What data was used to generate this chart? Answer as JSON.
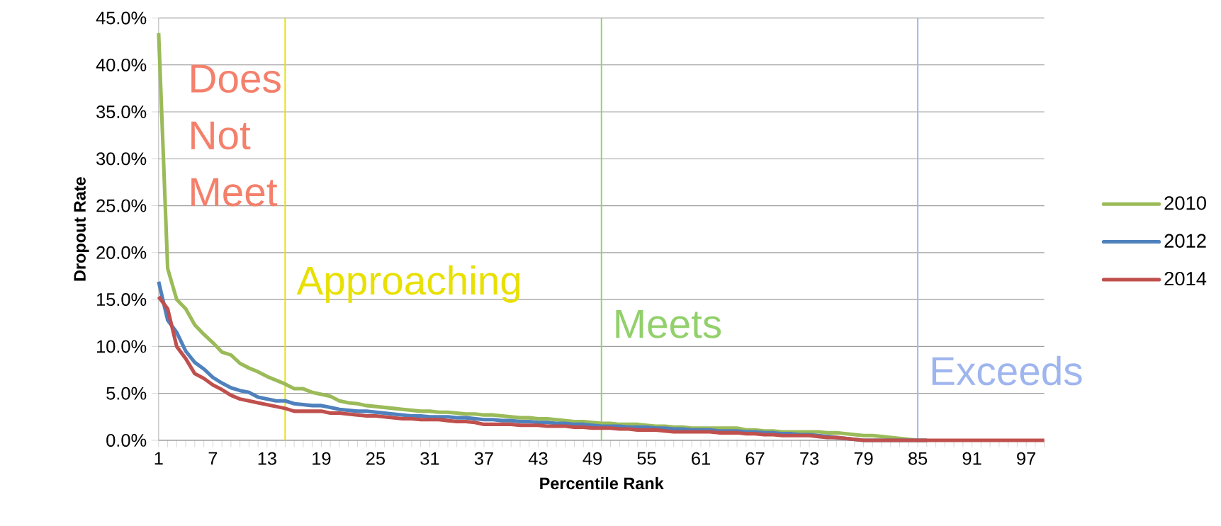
{
  "chart_data": {
    "type": "line",
    "xlabel": "Percentile Rank",
    "ylabel": "Dropout Rate",
    "x": [
      1,
      2,
      3,
      4,
      5,
      6,
      7,
      8,
      9,
      10,
      11,
      12,
      13,
      14,
      15,
      16,
      17,
      18,
      19,
      20,
      21,
      22,
      23,
      24,
      25,
      26,
      27,
      28,
      29,
      30,
      31,
      32,
      33,
      34,
      35,
      36,
      37,
      38,
      39,
      40,
      41,
      42,
      43,
      44,
      45,
      46,
      47,
      48,
      49,
      50,
      51,
      52,
      53,
      54,
      55,
      56,
      57,
      58,
      59,
      60,
      61,
      62,
      63,
      64,
      65,
      66,
      67,
      68,
      69,
      70,
      71,
      72,
      73,
      74,
      75,
      76,
      77,
      78,
      79,
      80,
      81,
      82,
      83,
      84,
      85,
      86,
      87,
      88,
      89,
      90,
      91,
      92,
      93,
      94,
      95,
      96,
      97,
      98,
      99
    ],
    "series": [
      {
        "name": "2010",
        "color": "#9bbb59",
        "values": [
          43.4,
          18.3,
          15.0,
          14.0,
          12.3,
          11.3,
          10.4,
          9.4,
          9.1,
          8.2,
          7.7,
          7.3,
          6.8,
          6.4,
          6.0,
          5.5,
          5.5,
          5.1,
          4.9,
          4.7,
          4.2,
          4.0,
          3.9,
          3.7,
          3.6,
          3.5,
          3.4,
          3.3,
          3.2,
          3.1,
          3.1,
          3.0,
          3.0,
          2.9,
          2.8,
          2.8,
          2.7,
          2.7,
          2.6,
          2.5,
          2.4,
          2.4,
          2.3,
          2.3,
          2.2,
          2.1,
          2.0,
          2.0,
          1.9,
          1.8,
          1.8,
          1.7,
          1.7,
          1.7,
          1.6,
          1.5,
          1.5,
          1.4,
          1.4,
          1.3,
          1.3,
          1.3,
          1.3,
          1.3,
          1.3,
          1.1,
          1.1,
          1.0,
          1.0,
          0.9,
          0.9,
          0.9,
          0.9,
          0.9,
          0.8,
          0.8,
          0.7,
          0.6,
          0.5,
          0.5,
          0.4,
          0.3,
          0.2,
          0.1,
          0.0,
          0,
          null,
          null,
          null,
          null,
          null,
          null,
          null,
          null,
          null,
          null,
          null,
          null,
          null
        ]
      },
      {
        "name": "2012",
        "color": "#4f81bd",
        "values": [
          16.9,
          12.8,
          11.5,
          9.5,
          8.3,
          7.6,
          6.7,
          6.1,
          5.6,
          5.3,
          5.1,
          4.6,
          4.4,
          4.2,
          4.2,
          3.9,
          3.8,
          3.7,
          3.7,
          3.5,
          3.3,
          3.2,
          3.1,
          3.1,
          3.0,
          2.9,
          2.8,
          2.7,
          2.6,
          2.6,
          2.5,
          2.5,
          2.5,
          2.4,
          2.4,
          2.3,
          2.2,
          2.2,
          2.1,
          2.1,
          2.0,
          2.0,
          1.9,
          1.9,
          1.8,
          1.8,
          1.7,
          1.7,
          1.6,
          1.5,
          1.5,
          1.5,
          1.4,
          1.4,
          1.4,
          1.3,
          1.3,
          1.2,
          1.2,
          1.1,
          1.1,
          1.1,
          1.0,
          1.0,
          1.0,
          0.9,
          0.9,
          0.8,
          0.8,
          0.7,
          0.7,
          0.6,
          0.6,
          0.5,
          0.4,
          0.3,
          0.2,
          0.1,
          0.0,
          0.0,
          0.0,
          0.0,
          0.0,
          0.0,
          0.0,
          0,
          null,
          null,
          null,
          null,
          null,
          null,
          null,
          null,
          null,
          null,
          null,
          null,
          null
        ]
      },
      {
        "name": "2014",
        "color": "#c0504d",
        "values": [
          15.3,
          14.0,
          10.0,
          8.7,
          7.1,
          6.6,
          5.9,
          5.4,
          4.8,
          4.4,
          4.2,
          4.0,
          3.8,
          3.6,
          3.4,
          3.1,
          3.1,
          3.1,
          3.1,
          2.9,
          2.9,
          2.8,
          2.7,
          2.6,
          2.6,
          2.5,
          2.4,
          2.3,
          2.3,
          2.2,
          2.2,
          2.2,
          2.1,
          2.0,
          2.0,
          1.9,
          1.7,
          1.7,
          1.7,
          1.7,
          1.6,
          1.6,
          1.6,
          1.5,
          1.5,
          1.5,
          1.4,
          1.4,
          1.3,
          1.3,
          1.3,
          1.2,
          1.2,
          1.1,
          1.1,
          1.1,
          1.0,
          0.9,
          0.9,
          0.9,
          0.9,
          0.9,
          0.8,
          0.8,
          0.8,
          0.7,
          0.7,
          0.6,
          0.6,
          0.5,
          0.5,
          0.5,
          0.5,
          0.4,
          0.3,
          0.3,
          0.2,
          0.1,
          0.0,
          0.0,
          0.0,
          0.0,
          0.0,
          0.0,
          0.0,
          0,
          0,
          0,
          0,
          0,
          0,
          0,
          0,
          0,
          0,
          0,
          0,
          0,
          0
        ]
      }
    ],
    "xlim": [
      1,
      99
    ],
    "xticks": [
      1,
      {
        "value": 2,
        "label": null
      },
      {
        "value": 3,
        "label": null
      },
      {
        "value": 4,
        "label": null
      },
      {
        "value": 5,
        "label": null
      },
      {
        "value": 6,
        "label": null
      },
      7,
      {
        "value": 8,
        "label": null
      },
      {
        "value": 9,
        "label": null
      },
      {
        "value": 10,
        "label": null
      },
      {
        "value": 11,
        "label": null
      },
      {
        "value": 12,
        "label": null
      },
      13,
      {
        "value": 14,
        "label": null
      },
      {
        "value": 15,
        "label": null
      },
      {
        "value": 16,
        "label": null
      },
      {
        "value": 17,
        "label": null
      },
      {
        "value": 18,
        "label": null
      },
      19,
      {
        "value": 20,
        "label": null
      },
      {
        "value": 21,
        "label": null
      },
      {
        "value": 22,
        "label": null
      },
      {
        "value": 23,
        "label": null
      },
      {
        "value": 24,
        "label": null
      },
      25,
      {
        "value": 26,
        "label": null
      },
      {
        "value": 27,
        "label": null
      },
      {
        "value": 28,
        "label": null
      },
      {
        "value": 29,
        "label": null
      },
      {
        "value": 30,
        "label": null
      },
      31,
      {
        "value": 32,
        "label": null
      },
      {
        "value": 33,
        "label": null
      },
      {
        "value": 34,
        "label": null
      },
      {
        "value": 35,
        "label": null
      },
      {
        "value": 36,
        "label": null
      },
      37,
      {
        "value": 38,
        "label": null
      },
      {
        "value": 39,
        "label": null
      },
      {
        "value": 40,
        "label": null
      },
      {
        "value": 41,
        "label": null
      },
      {
        "value": 42,
        "label": null
      },
      43,
      {
        "value": 44,
        "label": null
      },
      {
        "value": 45,
        "label": null
      },
      {
        "value": 46,
        "label": null
      },
      {
        "value": 47,
        "label": null
      },
      {
        "value": 48,
        "label": null
      },
      49,
      {
        "value": 50,
        "label": null
      },
      {
        "value": 51,
        "label": null
      },
      {
        "value": 52,
        "label": null
      },
      {
        "value": 53,
        "label": null
      },
      {
        "value": 54,
        "label": null
      },
      55,
      {
        "value": 56,
        "label": null
      },
      {
        "value": 57,
        "label": null
      },
      {
        "value": 58,
        "label": null
      },
      {
        "value": 59,
        "label": null
      },
      {
        "value": 60,
        "label": null
      },
      61,
      {
        "value": 62,
        "label": null
      },
      {
        "value": 63,
        "label": null
      },
      {
        "value": 64,
        "label": null
      },
      {
        "value": 65,
        "label": null
      },
      {
        "value": 66,
        "label": null
      },
      67,
      {
        "value": 68,
        "label": null
      },
      {
        "value": 69,
        "label": null
      },
      {
        "value": 70,
        "label": null
      },
      {
        "value": 71,
        "label": null
      },
      {
        "value": 72,
        "label": null
      },
      73,
      {
        "value": 74,
        "label": null
      },
      {
        "value": 75,
        "label": null
      },
      {
        "value": 76,
        "label": null
      },
      {
        "value": 77,
        "label": null
      },
      {
        "value": 78,
        "label": null
      },
      79,
      {
        "value": 80,
        "label": null
      },
      {
        "value": 81,
        "label": null
      },
      {
        "value": 82,
        "label": null
      },
      {
        "value": 83,
        "label": null
      },
      {
        "value": 84,
        "label": null
      },
      85,
      {
        "value": 86,
        "label": null
      },
      {
        "value": 87,
        "label": null
      },
      {
        "value": 88,
        "label": null
      },
      {
        "value": 89,
        "label": null
      },
      {
        "value": 90,
        "label": null
      },
      91,
      {
        "value": 92,
        "label": null
      },
      {
        "value": 93,
        "label": null
      },
      {
        "value": 94,
        "label": null
      },
      {
        "value": 95,
        "label": null
      },
      {
        "value": 96,
        "label": null
      },
      97,
      {
        "value": 98,
        "label": null
      },
      {
        "value": 99,
        "label": null
      }
    ],
    "ylim": [
      0,
      45
    ],
    "yticks": [
      {
        "value": 0,
        "label": "0.0%"
      },
      {
        "value": 5,
        "label": "5.0%"
      },
      {
        "value": 10,
        "label": "10.0%"
      },
      {
        "value": 15,
        "label": "15.0%"
      },
      {
        "value": 20,
        "label": "20.0%"
      },
      {
        "value": 25,
        "label": "25.0%"
      },
      {
        "value": 30,
        "label": "30.0%"
      },
      {
        "value": 35,
        "label": "35.0%"
      },
      {
        "value": 40,
        "label": "40.0%"
      },
      {
        "value": 45,
        "label": "45.0%"
      }
    ],
    "ref_lines": [
      {
        "axis": "x",
        "value": 15,
        "label": "Approaching",
        "color": "#e8e000"
      },
      {
        "axis": "x",
        "value": 50,
        "label": "Meets",
        "color": "#92d06b"
      },
      {
        "axis": "x",
        "value": 85,
        "label": "Exceeds",
        "color": "#9fb5ee"
      }
    ],
    "annotations": [
      "Does Not Meet"
    ],
    "grid": "y",
    "legend": "right"
  }
}
